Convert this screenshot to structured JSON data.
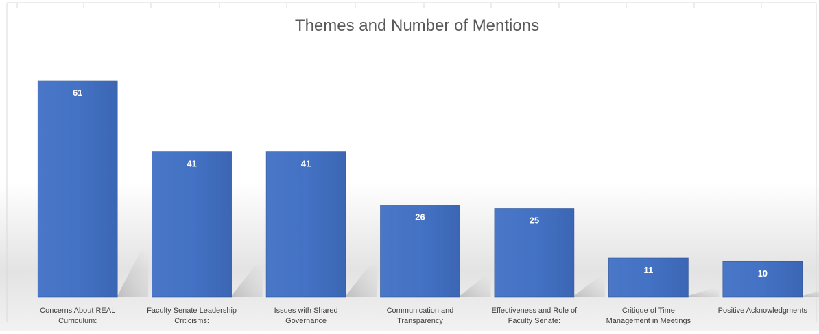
{
  "chart_data": {
    "type": "bar",
    "title": "Themes and Number of Mentions",
    "xlabel": "",
    "ylabel": "",
    "categories": [
      [
        "Concerns About REAL",
        "Curriculum:"
      ],
      [
        "Faculty Senate Leadership",
        "Criticisms:"
      ],
      [
        "Issues with Shared",
        "Governance"
      ],
      [
        "Communication and",
        "Transparency"
      ],
      [
        "Effectiveness and Role of",
        "Faculty Senate:"
      ],
      [
        "Critique of Time",
        "Management in Meetings"
      ],
      [
        "Positive Acknowledgments"
      ]
    ],
    "values": [
      61,
      41,
      41,
      26,
      25,
      11,
      10
    ],
    "ylim": [
      0,
      61
    ],
    "grid": true,
    "legend": "none",
    "colors": {
      "bar": "#4472C4",
      "bar_dark": "#2F5597",
      "label_text": "#FFFFFF",
      "title_text": "#595959",
      "axis_text": "#404040",
      "background_mid": "#E6E6E6"
    }
  }
}
